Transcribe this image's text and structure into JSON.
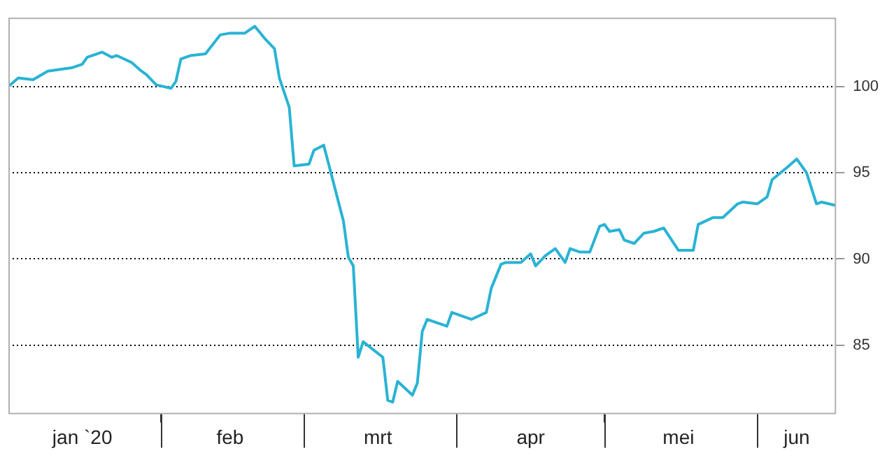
{
  "chart_data": {
    "type": "line",
    "x": [
      "2020-01-01",
      "2020-01-03",
      "2020-01-06",
      "2020-01-09",
      "2020-01-14",
      "2020-01-16",
      "2020-01-17",
      "2020-01-20",
      "2020-01-22",
      "2020-01-23",
      "2020-01-26",
      "2020-01-28",
      "2020-01-29",
      "2020-01-31",
      "2020-02-03",
      "2020-02-04",
      "2020-02-05",
      "2020-02-07",
      "2020-02-10",
      "2020-02-13",
      "2020-02-15",
      "2020-02-18",
      "2020-02-20",
      "2020-02-22",
      "2020-02-24",
      "2020-02-25",
      "2020-02-27",
      "2020-02-28",
      "2020-03-02",
      "2020-03-03",
      "2020-03-05",
      "2020-03-06",
      "2020-03-09",
      "2020-03-10",
      "2020-03-11",
      "2020-03-12",
      "2020-03-13",
      "2020-03-17",
      "2020-03-18",
      "2020-03-19",
      "2020-03-20",
      "2020-03-23",
      "2020-03-24",
      "2020-03-25",
      "2020-03-26",
      "2020-03-29",
      "2020-03-30",
      "2020-03-31",
      "2020-04-04",
      "2020-04-07",
      "2020-04-08",
      "2020-04-10",
      "2020-04-11",
      "2020-04-14",
      "2020-04-16",
      "2020-04-17",
      "2020-04-19",
      "2020-04-21",
      "2020-04-23",
      "2020-04-24",
      "2020-04-26",
      "2020-04-28",
      "2020-04-30",
      "2020-05-01",
      "2020-05-02",
      "2020-05-04",
      "2020-05-05",
      "2020-05-07",
      "2020-05-09",
      "2020-05-11",
      "2020-05-13",
      "2020-05-16",
      "2020-05-19",
      "2020-05-20",
      "2020-05-23",
      "2020-05-25",
      "2020-05-28",
      "2020-05-29",
      "2020-06-01",
      "2020-06-03",
      "2020-06-04",
      "2020-06-07",
      "2020-06-09",
      "2020-06-11",
      "2020-06-13",
      "2020-06-14",
      "2020-06-17"
    ],
    "series": [
      {
        "color": "#29b3d4",
        "values": [
          100.0,
          100.5,
          100.4,
          100.9,
          101.1,
          101.3,
          101.7,
          102.0,
          101.7,
          101.8,
          101.4,
          100.9,
          100.7,
          100.1,
          99.9,
          100.3,
          101.6,
          101.8,
          101.9,
          103.0,
          103.1,
          103.1,
          103.5,
          102.8,
          102.2,
          100.5,
          98.8,
          95.4,
          95.5,
          96.3,
          96.6,
          95.5,
          92.2,
          90.1,
          89.6,
          84.3,
          85.2,
          84.3,
          81.8,
          81.7,
          82.9,
          82.1,
          82.8,
          85.8,
          86.5,
          86.2,
          86.1,
          86.9,
          86.5,
          86.9,
          88.3,
          89.7,
          89.8,
          89.8,
          90.3,
          89.6,
          90.2,
          90.6,
          89.8,
          90.6,
          90.4,
          90.4,
          91.9,
          92.0,
          91.6,
          91.7,
          91.1,
          90.9,
          91.5,
          91.6,
          91.8,
          90.5,
          90.5,
          92.0,
          92.4,
          92.4,
          93.2,
          93.3,
          93.2,
          93.6,
          94.6,
          95.3,
          95.8,
          95.0,
          93.2,
          93.3,
          93.1
        ]
      }
    ],
    "xlim": [
      "2020-01-01",
      "2020-06-17"
    ],
    "xticks": [
      {
        "value": "2020-01-16",
        "label": "jan `20"
      },
      {
        "value": "2020-02-01",
        "label": null
      },
      {
        "value": "2020-02-15",
        "label": "feb"
      },
      {
        "value": "2020-03-01",
        "label": null
      },
      {
        "value": "2020-03-16",
        "label": "mrt"
      },
      {
        "value": "2020-04-01",
        "label": null
      },
      {
        "value": "2020-04-16",
        "label": "apr"
      },
      {
        "value": "2020-05-01",
        "label": null
      },
      {
        "value": "2020-05-16",
        "label": "mei"
      },
      {
        "value": "2020-06-01",
        "label": null
      },
      {
        "value": "2020-06-09",
        "label": "jun"
      }
    ],
    "ylim": [
      81,
      104
    ],
    "yticks": [
      85,
      90,
      95,
      100
    ],
    "grid": "y",
    "line_style": "solid",
    "marker": "none"
  }
}
